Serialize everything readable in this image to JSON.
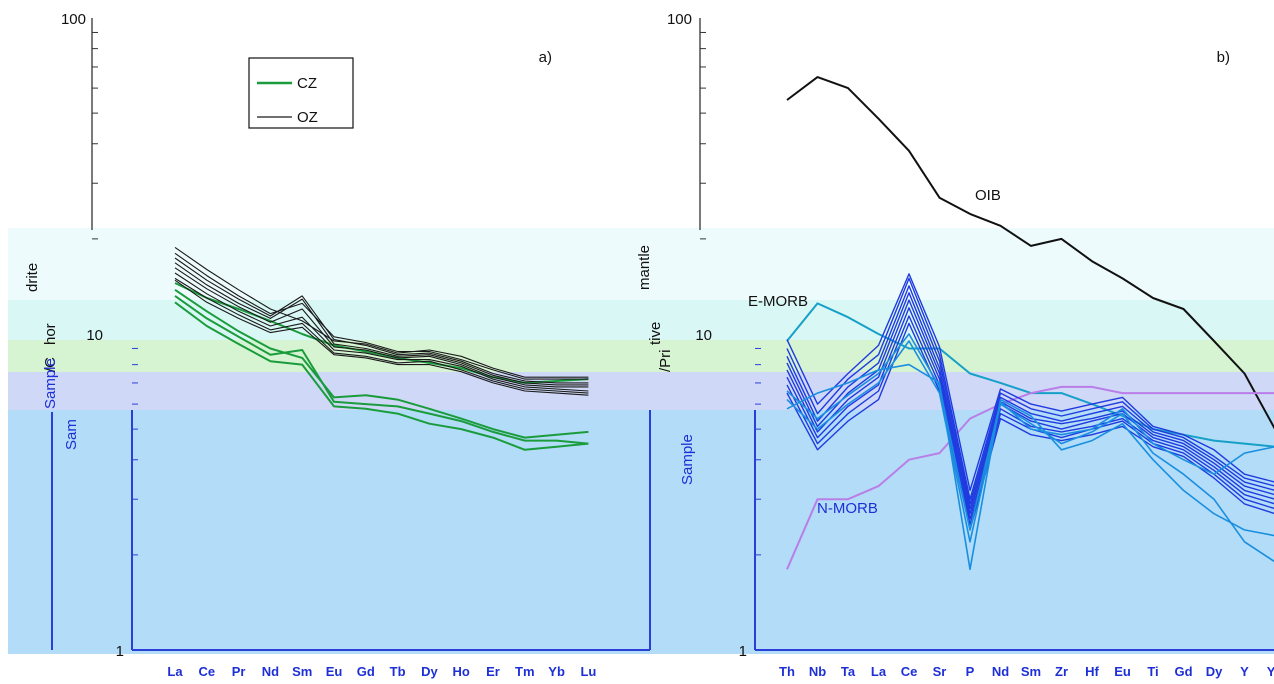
{
  "colors": {
    "band_top": "#eefbfd",
    "band_cyan": "#d9f7f5",
    "band_green": "#d6f4d2",
    "band_lavender": "#cfd9f7",
    "band_blue": "#b3dcf8",
    "cz_green": "#1a9c3c",
    "oz_black": "#1a1a1a",
    "sample_blue": "#1f3be0",
    "sample_light_blue": "#1a8fe0",
    "nmorb_purple": "#b97ee8",
    "emorb_teal": "#16a0c8",
    "oib_black": "#111111",
    "category_blue": "#1d2fd6"
  },
  "chart_data": [
    {
      "type": "line",
      "panel_label": "a)",
      "yscale": "log",
      "ylim": [
        1,
        100
      ],
      "ytick_labels": [
        "100",
        "10",
        "1"
      ],
      "ylabel_fragments": [
        "drite",
        "hor",
        "/C",
        "Sample",
        "Sam"
      ],
      "categories": [
        "La",
        "Ce",
        "Pr",
        "Nd",
        "Sm",
        "Eu",
        "Gd",
        "Tb",
        "Dy",
        "Ho",
        "Er",
        "Tm",
        "Yb",
        "Lu"
      ],
      "legend": {
        "position": "top-left",
        "entries": [
          "CZ",
          "OZ"
        ]
      },
      "series": [
        {
          "name": "CZ",
          "group": "CZ",
          "values": [
            14.5,
            13.0,
            12.0,
            11.0,
            10.0,
            9.2,
            8.8,
            8.4,
            8.1,
            7.8,
            7.3,
            7.0,
            7.1,
            7.2
          ]
        },
        {
          "name": "OZ",
          "group": "OZ",
          "values": [
            18.8,
            16.0,
            13.8,
            12.0,
            11.0,
            9.5,
            9.3,
            8.7,
            8.9,
            8.5,
            7.8,
            7.3,
            7.3,
            7.3
          ]
        },
        {
          "group": "OZ",
          "values": [
            18.0,
            15.3,
            13.2,
            11.6,
            12.5,
            9.8,
            9.4,
            8.8,
            8.8,
            8.3,
            7.7,
            7.2,
            7.2,
            7.2
          ]
        },
        {
          "group": "OZ",
          "values": [
            17.4,
            14.8,
            12.9,
            11.4,
            13.2,
            9.6,
            9.2,
            8.6,
            8.7,
            8.2,
            7.5,
            7.1,
            7.0,
            7.0
          ]
        },
        {
          "group": "OZ",
          "values": [
            16.8,
            14.3,
            12.5,
            11.2,
            12.9,
            9.3,
            9.0,
            8.5,
            8.6,
            8.1,
            7.4,
            7.0,
            6.9,
            6.9
          ]
        },
        {
          "group": "OZ",
          "values": [
            16.2,
            13.9,
            12.2,
            10.9,
            12.0,
            9.1,
            8.9,
            8.4,
            8.5,
            8.0,
            7.3,
            6.9,
            6.8,
            6.8
          ]
        },
        {
          "group": "OZ",
          "values": [
            15.6,
            13.4,
            11.8,
            10.6,
            11.3,
            8.9,
            8.7,
            8.3,
            8.3,
            7.9,
            7.2,
            6.8,
            6.7,
            6.6
          ]
        },
        {
          "group": "OZ",
          "values": [
            15.0,
            13.0,
            11.5,
            10.3,
            10.8,
            8.7,
            8.5,
            8.1,
            8.2,
            7.7,
            7.1,
            6.7,
            6.6,
            6.5
          ]
        },
        {
          "group": "OZ",
          "values": [
            14.8,
            12.6,
            11.2,
            10.1,
            10.5,
            8.6,
            8.4,
            8.0,
            8.0,
            7.6,
            7.0,
            6.6,
            6.5,
            6.4
          ]
        },
        {
          "group": "CZ",
          "values": [
            13.8,
            11.8,
            10.2,
            9.0,
            8.4,
            6.3,
            6.4,
            6.2,
            5.8,
            5.4,
            5.0,
            4.7,
            4.8,
            4.9
          ]
        },
        {
          "group": "CZ",
          "values": [
            13.2,
            11.2,
            9.8,
            8.6,
            8.9,
            6.1,
            6.0,
            5.9,
            5.6,
            5.3,
            4.9,
            4.6,
            4.6,
            4.5
          ]
        },
        {
          "group": "CZ",
          "values": [
            12.6,
            10.6,
            9.3,
            8.2,
            8.0,
            5.9,
            5.8,
            5.6,
            5.2,
            5.0,
            4.7,
            4.3,
            4.4,
            4.5
          ]
        }
      ]
    },
    {
      "type": "line",
      "panel_label": "b)",
      "yscale": "log",
      "ylim": [
        1,
        100
      ],
      "ytick_labels": [
        "100",
        "10",
        "1"
      ],
      "ylabel_fragments": [
        "mantle",
        "tive",
        "/Pri",
        "Sample"
      ],
      "categories": [
        "Th",
        "Nb",
        "Ta",
        "La",
        "Ce",
        "Sr",
        "P",
        "Nd",
        "Sm",
        "Zr",
        "Hf",
        "Eu",
        "Ti",
        "Gd",
        "Dy",
        "Y",
        "Yb"
      ],
      "annotations": [
        "OIB",
        "E-MORB",
        "N-MORB"
      ],
      "series": [
        {
          "name": "OIB",
          "values": [
            55,
            65,
            60,
            48,
            38,
            27,
            24,
            22,
            19,
            20,
            17,
            15,
            13,
            12,
            9.5,
            7.5,
            5.0
          ]
        },
        {
          "name": "E-MORB",
          "values": [
            9.5,
            12.5,
            11.3,
            10.0,
            9.0,
            9.0,
            7.5,
            7.0,
            6.5,
            6.5,
            6.0,
            5.5,
            5.0,
            4.8,
            4.6,
            4.5,
            4.4
          ]
        },
        {
          "name": "N-MORB",
          "values": [
            1.8,
            3.0,
            3.0,
            3.3,
            4.0,
            4.2,
            5.4,
            6.0,
            6.5,
            6.8,
            6.8,
            6.5,
            6.5,
            6.5,
            6.5,
            6.5,
            6.5
          ]
        },
        {
          "group": "sample",
          "values": [
            9.6,
            6.0,
            7.5,
            9.2,
            15.5,
            9.1,
            3.2,
            6.7,
            6.0,
            5.7,
            6.0,
            6.3,
            5.1,
            4.8,
            4.3,
            3.6,
            3.4
          ]
        },
        {
          "group": "sample",
          "values": [
            9.0,
            5.6,
            7.2,
            8.6,
            15.0,
            8.6,
            3.0,
            6.5,
            5.8,
            5.5,
            5.8,
            6.1,
            5.0,
            4.7,
            4.1,
            3.5,
            3.3
          ]
        },
        {
          "group": "sample",
          "values": [
            8.5,
            5.3,
            6.8,
            8.1,
            14.2,
            8.2,
            2.9,
            6.3,
            5.6,
            5.3,
            5.6,
            5.9,
            4.9,
            4.6,
            4.0,
            3.4,
            3.2
          ]
        },
        {
          "group": "sample",
          "values": [
            8.1,
            5.1,
            6.5,
            7.7,
            13.5,
            7.8,
            2.8,
            6.1,
            5.4,
            5.2,
            5.4,
            5.7,
            4.8,
            4.5,
            3.9,
            3.3,
            3.1
          ]
        },
        {
          "group": "sample",
          "values": [
            7.7,
            4.9,
            6.2,
            7.3,
            12.8,
            7.5,
            2.7,
            6.0,
            5.3,
            5.0,
            5.3,
            5.6,
            4.7,
            4.4,
            3.8,
            3.2,
            3.0
          ]
        },
        {
          "group": "sample",
          "values": [
            7.3,
            4.7,
            5.9,
            6.9,
            12.1,
            7.2,
            2.6,
            5.8,
            5.1,
            4.9,
            5.1,
            5.4,
            4.6,
            4.3,
            3.7,
            3.1,
            2.9
          ]
        },
        {
          "group": "sample",
          "values": [
            6.9,
            4.5,
            5.6,
            6.6,
            11.4,
            6.9,
            2.5,
            5.6,
            5.0,
            4.7,
            5.0,
            5.3,
            4.5,
            4.2,
            3.6,
            3.0,
            2.8
          ]
        },
        {
          "group": "sample",
          "values": [
            6.5,
            4.3,
            5.3,
            6.2,
            10.8,
            6.6,
            2.4,
            5.4,
            4.8,
            4.6,
            4.8,
            5.1,
            4.4,
            4.1,
            3.5,
            2.9,
            2.7
          ]
        },
        {
          "group": "sample_light",
          "values": [
            5.8,
            6.5,
            7.0,
            7.7,
            8.0,
            7.0,
            1.8,
            6.2,
            5.5,
            4.3,
            4.6,
            5.2,
            4.0,
            3.2,
            2.7,
            2.4,
            2.3
          ]
        },
        {
          "group": "sample_light",
          "values": [
            6.2,
            5.0,
            6.0,
            7.0,
            9.5,
            6.5,
            2.2,
            6.0,
            5.2,
            4.5,
            4.9,
            5.6,
            4.2,
            3.6,
            3.0,
            2.2,
            1.9
          ]
        },
        {
          "group": "sample_light",
          "values": [
            6.6,
            5.4,
            6.4,
            7.5,
            10.0,
            6.8,
            2.4,
            6.1,
            5.0,
            4.8,
            5.0,
            5.8,
            4.5,
            4.0,
            3.6,
            4.2,
            4.4
          ]
        }
      ]
    }
  ]
}
